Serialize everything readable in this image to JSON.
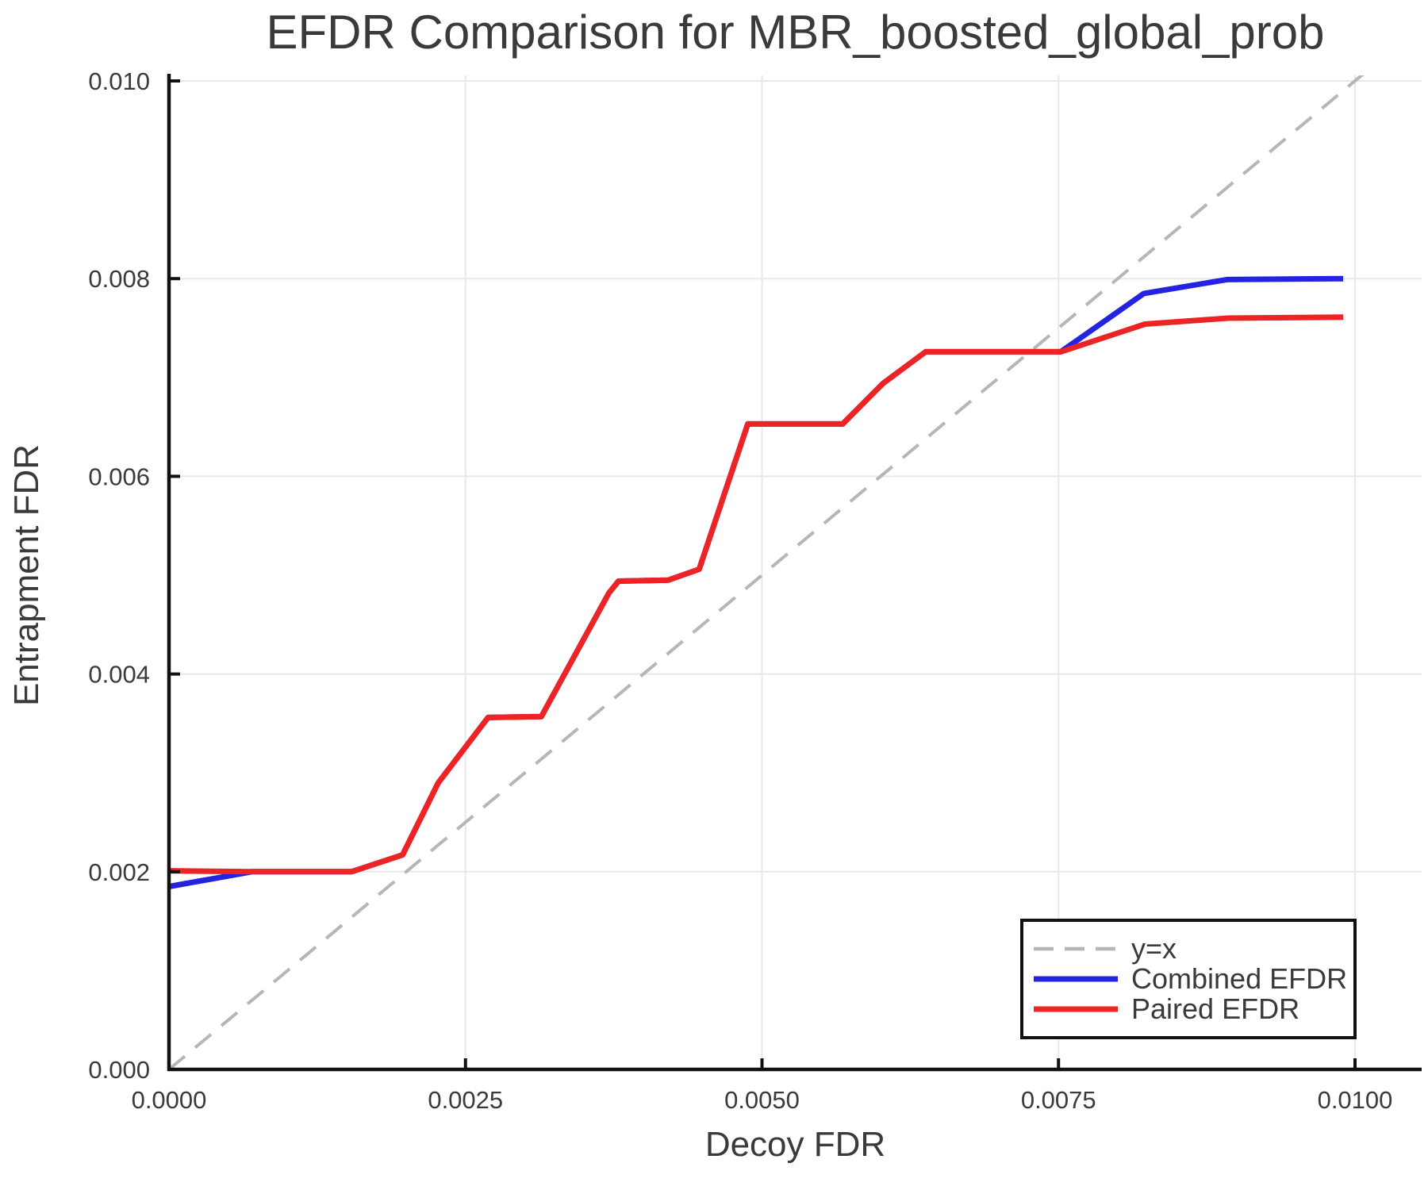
{
  "figure": {
    "background": "#ffffff",
    "text_color": "#3a3a3a",
    "axis_color": "#111111",
    "grid_color": "#e8e8e8"
  },
  "chart_data": {
    "type": "line",
    "title": "EFDR Comparison for MBR_boosted_global_prob",
    "xlabel": "Decoy FDR",
    "ylabel": "Entrapment FDR",
    "xlim": [
      0,
      0.0106
    ],
    "ylim": [
      0,
      0.0101
    ],
    "grid": true,
    "legend_position": "lower right",
    "x_ticks": {
      "values": [
        0.0,
        0.0025,
        0.005,
        0.0075,
        0.01
      ],
      "labels": [
        "0.0000",
        "0.0025",
        "0.0050",
        "0.0075",
        "0.0100"
      ]
    },
    "y_ticks": {
      "values": [
        0.0,
        0.002,
        0.004,
        0.006,
        0.008,
        0.01
      ],
      "labels": [
        "0.000",
        "0.002",
        "0.004",
        "0.006",
        "0.008",
        "0.010"
      ]
    },
    "series": [
      {
        "name": "y=x",
        "color": "#b6b6b6",
        "dashed": true,
        "width": 4,
        "points": [
          [
            0.0,
            0.0
          ],
          [
            0.0106,
            0.0106
          ]
        ]
      },
      {
        "name": "Combined EFDR",
        "color": "#2323e1",
        "dashed": false,
        "width": 7,
        "points": [
          [
            0.0,
            0.00185
          ],
          [
            0.0007,
            0.002
          ],
          [
            0.00154,
            0.002
          ],
          [
            0.00197,
            0.00217
          ],
          [
            0.00227,
            0.0029
          ],
          [
            0.00269,
            0.00356
          ],
          [
            0.00314,
            0.00357
          ],
          [
            0.00371,
            0.00482
          ],
          [
            0.00379,
            0.00494
          ],
          [
            0.00421,
            0.00495
          ],
          [
            0.00447,
            0.00506
          ],
          [
            0.00488,
            0.00653
          ],
          [
            0.00568,
            0.00653
          ],
          [
            0.00602,
            0.00694
          ],
          [
            0.00638,
            0.00726
          ],
          [
            0.00752,
            0.00726
          ],
          [
            0.00822,
            0.00785
          ],
          [
            0.00892,
            0.00799
          ],
          [
            0.0099,
            0.008
          ]
        ]
      },
      {
        "name": "Paired EFDR",
        "color": "#ee2323",
        "dashed": false,
        "width": 7,
        "points": [
          [
            0.0,
            0.00201
          ],
          [
            0.0007,
            0.002
          ],
          [
            0.00154,
            0.002
          ],
          [
            0.00197,
            0.00217
          ],
          [
            0.00227,
            0.0029
          ],
          [
            0.00269,
            0.00356
          ],
          [
            0.00314,
            0.00357
          ],
          [
            0.00371,
            0.00482
          ],
          [
            0.00379,
            0.00494
          ],
          [
            0.00421,
            0.00495
          ],
          [
            0.00447,
            0.00506
          ],
          [
            0.00488,
            0.00653
          ],
          [
            0.00568,
            0.00653
          ],
          [
            0.00602,
            0.00694
          ],
          [
            0.00638,
            0.00726
          ],
          [
            0.00752,
            0.00726
          ],
          [
            0.00823,
            0.00754
          ],
          [
            0.00893,
            0.0076
          ],
          [
            0.0099,
            0.00761
          ]
        ]
      }
    ],
    "legend": {
      "items": [
        {
          "label": "y=x",
          "color": "#b6b6b6",
          "dashed": true
        },
        {
          "label": "Combined EFDR",
          "color": "#2323e1",
          "dashed": false
        },
        {
          "label": "Paired EFDR",
          "color": "#ee2323",
          "dashed": false
        }
      ]
    }
  }
}
